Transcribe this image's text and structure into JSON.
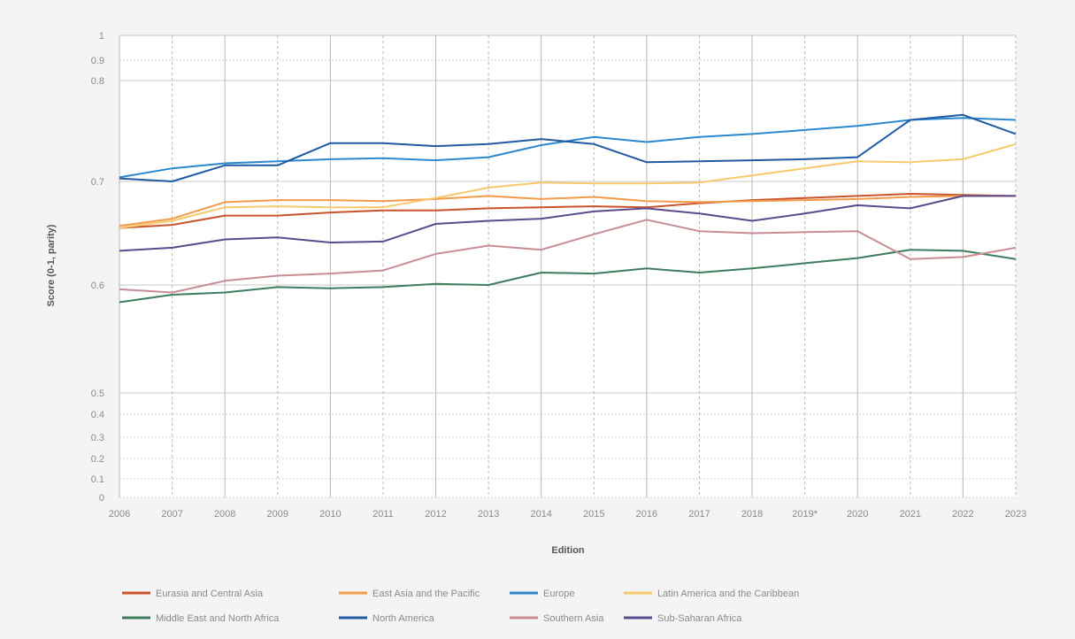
{
  "chart_data": {
    "type": "line",
    "xlabel": "Edition",
    "ylabel": "Score (0-1, parity)",
    "x": [
      "2006",
      "2007",
      "2008",
      "2009",
      "2010",
      "2011",
      "2012",
      "2013",
      "2014",
      "2015",
      "2016",
      "2017",
      "2018",
      "2019*",
      "2020",
      "2021",
      "2022",
      "2023"
    ],
    "y_ticks": [
      "0",
      "0.1",
      "0.2",
      "0.3",
      "0.4",
      "0.5",
      "0.6",
      "0.7",
      "0.8",
      "0.9",
      "1"
    ],
    "ylim": [
      0,
      1
    ],
    "y_scale_note": "broken axis: 0-0.5 and 0.8-1 compressed, 0.5-0.8 expanded",
    "grid": true,
    "legend_position": "bottom",
    "series": [
      {
        "name": "Eurasia and Central Asia",
        "color": "#c8532c",
        "values": [
          0.655,
          0.658,
          0.667,
          0.667,
          0.67,
          0.672,
          0.672,
          0.674,
          0.675,
          0.676,
          0.675,
          0.679,
          0.682,
          0.684,
          0.686,
          0.688,
          0.687,
          0.686
        ]
      },
      {
        "name": "East Asia and the Pacific",
        "color": "#f29b4a",
        "values": [
          0.657,
          0.664,
          0.68,
          0.682,
          0.682,
          0.681,
          0.683,
          0.686,
          0.683,
          0.685,
          0.681,
          0.68,
          0.681,
          0.682,
          0.683,
          0.685,
          0.686,
          0.686
        ]
      },
      {
        "name": "Europe",
        "color": "#2b88cc",
        "values": [
          0.704,
          0.713,
          0.718,
          0.72,
          0.722,
          0.723,
          0.721,
          0.724,
          0.736,
          0.744,
          0.739,
          0.744,
          0.747,
          0.751,
          0.755,
          0.761,
          0.763,
          0.761
        ]
      },
      {
        "name": "Latin America and the Caribbean",
        "color": "#f7c96a",
        "values": [
          0.655,
          0.662,
          0.675,
          0.676,
          0.675,
          0.675,
          0.684,
          0.694,
          0.699,
          0.698,
          0.698,
          0.699,
          0.706,
          0.713,
          0.72,
          0.719,
          0.722,
          0.737
        ]
      },
      {
        "name": "Middle East and North Africa",
        "color": "#3d7d5e",
        "values": [
          0.584,
          0.591,
          0.593,
          0.598,
          0.597,
          0.598,
          0.601,
          0.6,
          0.612,
          0.611,
          0.616,
          0.612,
          0.616,
          0.621,
          0.626,
          0.634,
          0.633,
          0.625
        ]
      },
      {
        "name": "North America",
        "color": "#1f5aa3",
        "values": [
          0.703,
          0.7,
          0.716,
          0.716,
          0.738,
          0.738,
          0.735,
          0.737,
          0.742,
          0.737,
          0.719,
          0.72,
          0.721,
          0.722,
          0.724,
          0.761,
          0.766,
          0.747
        ]
      },
      {
        "name": "Southern Asia",
        "color": "#c88c95",
        "values": [
          0.596,
          0.593,
          0.604,
          0.609,
          0.611,
          0.614,
          0.63,
          0.638,
          0.634,
          0.649,
          0.663,
          0.652,
          0.65,
          0.651,
          0.652,
          0.625,
          0.627,
          0.636
        ]
      },
      {
        "name": "Sub-Saharan Africa",
        "color": "#5b4a8c",
        "values": [
          0.633,
          0.636,
          0.644,
          0.646,
          0.641,
          0.642,
          0.659,
          0.662,
          0.664,
          0.671,
          0.674,
          0.669,
          0.662,
          0.669,
          0.677,
          0.674,
          0.686,
          0.686
        ]
      }
    ]
  }
}
